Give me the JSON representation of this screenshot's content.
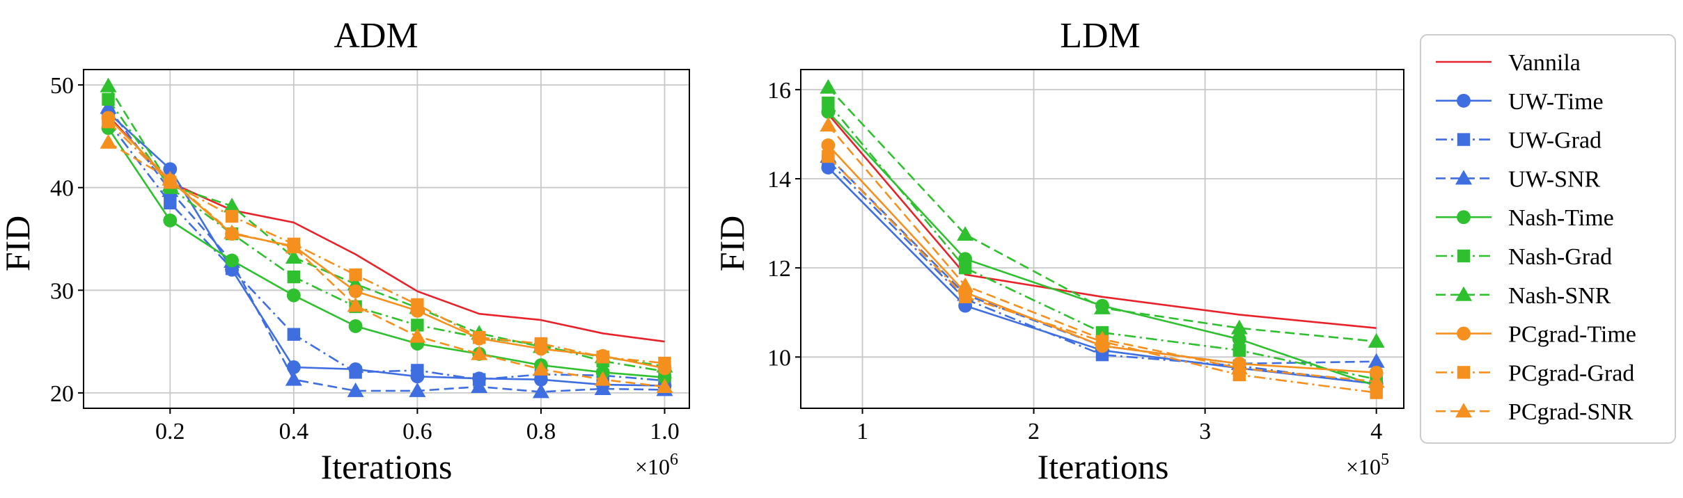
{
  "chart_data": [
    {
      "type": "line",
      "title": "ADM",
      "xlabel": "Iterations",
      "ylabel": "FID",
      "x_multiplier": "×10",
      "x_multiplier_exp": "6",
      "xlim": [
        0.06,
        1.04
      ],
      "ylim": [
        18.5,
        51.5
      ],
      "xticks": [
        0.2,
        0.4,
        0.6,
        0.8,
        1.0
      ],
      "xtick_labels": [
        "0.2",
        "0.4",
        "0.6",
        "0.8",
        "1.0"
      ],
      "yticks": [
        20,
        30,
        40,
        50
      ],
      "ytick_labels": [
        "20",
        "30",
        "40",
        "50"
      ],
      "grid": true,
      "x": [
        0.1,
        0.2,
        0.3,
        0.4,
        0.5,
        0.6,
        0.7,
        0.8,
        0.9,
        1.0
      ],
      "series": [
        {
          "name": "Vannila",
          "values": [
            47.0,
            40.5,
            37.8,
            36.6,
            33.5,
            29.9,
            27.7,
            27.1,
            25.8,
            25.0
          ]
        },
        {
          "name": "UW-Time",
          "values": [
            47.3,
            41.8,
            32.0,
            22.5,
            22.3,
            21.6,
            21.4,
            21.3,
            20.8,
            20.7
          ]
        },
        {
          "name": "UW-Grad",
          "values": [
            46.4,
            38.5,
            32.1,
            25.7,
            22.0,
            22.2,
            21.3,
            21.8,
            21.7,
            21.2
          ]
        },
        {
          "name": "UW-SNR",
          "values": [
            47.8,
            39.7,
            32.8,
            21.3,
            20.2,
            20.2,
            20.6,
            20.1,
            20.4,
            20.3
          ]
        },
        {
          "name": "Nash-Time",
          "values": [
            45.8,
            36.8,
            32.9,
            29.5,
            26.5,
            24.8,
            23.8,
            22.7,
            22.0,
            21.5
          ]
        },
        {
          "name": "Nash-Grad",
          "values": [
            48.6,
            40.0,
            35.5,
            31.3,
            28.4,
            26.6,
            25.4,
            24.7,
            23.1,
            22.1
          ]
        },
        {
          "name": "Nash-SNR",
          "values": [
            49.9,
            40.2,
            38.2,
            33.2,
            30.6,
            28.3,
            25.8,
            24.5,
            23.5,
            22.6
          ]
        },
        {
          "name": "PCgrad-Time",
          "values": [
            46.8,
            40.7,
            35.5,
            34.3,
            29.9,
            28.0,
            25.3,
            24.3,
            23.6,
            22.4
          ]
        },
        {
          "name": "PCgrad-Grad",
          "values": [
            46.4,
            40.5,
            37.2,
            34.5,
            31.5,
            28.6,
            25.4,
            24.8,
            23.5,
            22.9
          ]
        },
        {
          "name": "PCgrad-SNR",
          "values": [
            44.4,
            40.8,
            35.6,
            34.2,
            28.5,
            25.5,
            23.8,
            22.3,
            21.3,
            20.6
          ]
        }
      ]
    },
    {
      "type": "line",
      "title": "LDM",
      "xlabel": "Iterations",
      "ylabel": "FID",
      "x_multiplier": "×10",
      "x_multiplier_exp": "5",
      "xlim": [
        0.64,
        4.16
      ],
      "ylim": [
        8.85,
        16.45
      ],
      "xticks": [
        1,
        2,
        3,
        4
      ],
      "xtick_labels": [
        "1",
        "2",
        "3",
        "4"
      ],
      "yticks": [
        10,
        12,
        14,
        16
      ],
      "ytick_labels": [
        "10",
        "12",
        "14",
        "16"
      ],
      "grid": true,
      "x": [
        0.8,
        1.6,
        2.4,
        3.2,
        4.0
      ],
      "series": [
        {
          "name": "Vannila",
          "values": [
            15.45,
            11.85,
            11.35,
            10.95,
            10.65
          ]
        },
        {
          "name": "UW-Time",
          "values": [
            14.25,
            11.15,
            10.15,
            9.75,
            9.4
          ]
        },
        {
          "name": "UW-Grad",
          "values": [
            14.4,
            11.3,
            10.05,
            9.8,
            9.4
          ]
        },
        {
          "name": "UW-SNR",
          "values": [
            14.5,
            11.4,
            10.25,
            9.85,
            9.9
          ]
        },
        {
          "name": "Nash-Time",
          "values": [
            15.5,
            12.2,
            11.15,
            10.4,
            9.35
          ]
        },
        {
          "name": "Nash-Grad",
          "values": [
            15.7,
            12.0,
            10.55,
            10.15,
            9.5
          ]
        },
        {
          "name": "Nash-SNR",
          "values": [
            16.05,
            12.75,
            11.1,
            10.65,
            10.35
          ]
        },
        {
          "name": "PCgrad-Time",
          "values": [
            14.75,
            11.45,
            10.25,
            9.85,
            9.65
          ]
        },
        {
          "name": "PCgrad-Grad",
          "values": [
            14.5,
            11.35,
            10.35,
            9.6,
            9.2
          ]
        },
        {
          "name": "PCgrad-SNR",
          "values": [
            15.2,
            11.6,
            10.4,
            9.75,
            9.45
          ]
        }
      ]
    }
  ],
  "legend": {
    "placement": "right",
    "entries": [
      {
        "label": "Vannila",
        "color": "#e8222a",
        "style": "solid",
        "marker": "none"
      },
      {
        "label": "UW-Time",
        "color": "#3e6ee0",
        "style": "solid",
        "marker": "circle"
      },
      {
        "label": "UW-Grad",
        "color": "#3e6ee0",
        "style": "dashdot",
        "marker": "square"
      },
      {
        "label": "UW-SNR",
        "color": "#3e6ee0",
        "style": "dashed",
        "marker": "triangle"
      },
      {
        "label": "Nash-Time",
        "color": "#2ec02e",
        "style": "solid",
        "marker": "circle"
      },
      {
        "label": "Nash-Grad",
        "color": "#2ec02e",
        "style": "dashdot",
        "marker": "square"
      },
      {
        "label": "Nash-SNR",
        "color": "#2ec02e",
        "style": "dashed",
        "marker": "triangle"
      },
      {
        "label": "PCgrad-Time",
        "color": "#f5901e",
        "style": "solid",
        "marker": "circle"
      },
      {
        "label": "PCgrad-Grad",
        "color": "#f5901e",
        "style": "dashdot",
        "marker": "square"
      },
      {
        "label": "PCgrad-SNR",
        "color": "#f5901e",
        "style": "dashed",
        "marker": "triangle"
      }
    ]
  }
}
